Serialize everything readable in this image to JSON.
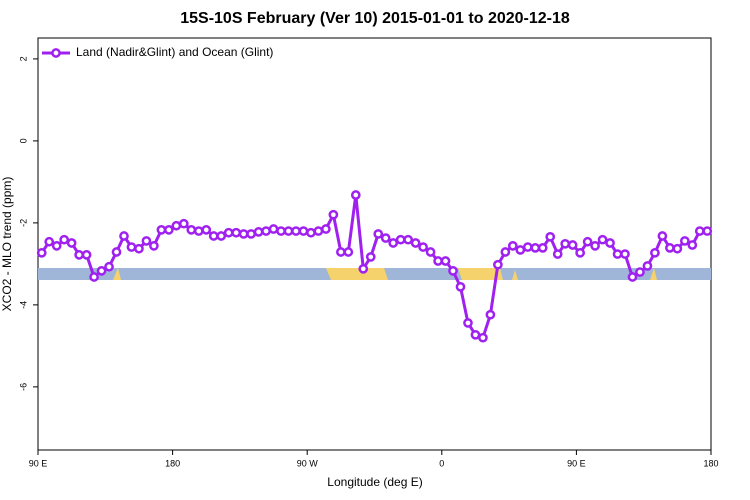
{
  "chart_data": {
    "type": "line",
    "title": "15S-10S February (Ver 10)   2015-01-01 to 2020-12-18",
    "x_label": "Longitude (deg E)",
    "y_label": "XCO2 - MLO trend (ppm)",
    "xlim": [
      90,
      540
    ],
    "xticks": [
      {
        "value": 90,
        "label": "90 E"
      },
      180,
      {
        "value": 270,
        "label": "90 W"
      },
      {
        "value": 360,
        "label": "0"
      },
      {
        "value": 450,
        "label": "90 E"
      },
      {
        "value": 540,
        "label": "180"
      }
    ],
    "ylim": [
      -7.54,
      2.51
    ],
    "yticks": [
      2,
      0,
      -2,
      -4,
      -6
    ],
    "legend": "top-left",
    "x": [
      92.5,
      97.5,
      102.5,
      107.5,
      112.5,
      117.5,
      122.5,
      127.5,
      132.5,
      137.5,
      142.5,
      147.5,
      152.5,
      157.5,
      162.5,
      167.5,
      172.5,
      177.5,
      182.5,
      187.5,
      192.5,
      197.5,
      202.5,
      207.5,
      212.5,
      217.5,
      222.5,
      227.5,
      232.5,
      237.5,
      242.5,
      247.5,
      252.5,
      257.5,
      262.5,
      267.5,
      272.5,
      277.5,
      282.5,
      287.5,
      292.5,
      297.5,
      302.5,
      307.5,
      312.5,
      317.5,
      322.5,
      327.5,
      332.5,
      337.5,
      342.5,
      347.5,
      352.5,
      357.5,
      362.5,
      367.5,
      372.5,
      377.5,
      382.5,
      387.5,
      392.5,
      397.5,
      402.5,
      407.5,
      412.5,
      417.5,
      422.5,
      427.5,
      432.5,
      437.5,
      442.5,
      447.5,
      452.5,
      457.5,
      462.5,
      467.5,
      472.5,
      477.5,
      482.5,
      487.5,
      492.5,
      497.5,
      502.5,
      507.5,
      512.5,
      517.5,
      522.5,
      527.5,
      532.5,
      537.5
    ],
    "series": [
      {
        "name": "Land (Nadir&Glint) and Ocean (Glint)",
        "color": "#a020f0",
        "values": [
          -2.73,
          -2.46,
          -2.56,
          -2.41,
          -2.49,
          -2.78,
          -2.78,
          -3.32,
          -3.17,
          -3.07,
          -2.71,
          -2.32,
          -2.59,
          -2.63,
          -2.44,
          -2.56,
          -2.17,
          -2.17,
          -2.07,
          -2.02,
          -2.17,
          -2.2,
          -2.17,
          -2.32,
          -2.32,
          -2.24,
          -2.24,
          -2.27,
          -2.27,
          -2.22,
          -2.2,
          -2.15,
          -2.2,
          -2.2,
          -2.2,
          -2.2,
          -2.24,
          -2.2,
          -2.15,
          -1.8,
          -2.71,
          -2.71,
          -1.32,
          -3.12,
          -2.83,
          -2.27,
          -2.37,
          -2.49,
          -2.41,
          -2.41,
          -2.49,
          -2.59,
          -2.71,
          -2.93,
          -2.93,
          -3.17,
          -3.56,
          -4.44,
          -4.73,
          -4.8,
          -4.24,
          -3.02,
          -2.71,
          -2.56,
          -2.66,
          -2.59,
          -2.61,
          -2.61,
          -2.34,
          -2.76,
          -2.51,
          -2.54,
          -2.73,
          -2.46,
          -2.56,
          -2.41,
          -2.49,
          -2.76,
          -2.76,
          -3.32,
          -3.2,
          -3.05,
          -2.73,
          -2.32,
          -2.61,
          -2.63,
          -2.44,
          -2.54,
          -2.2,
          -2.2
        ]
      }
    ]
  }
}
